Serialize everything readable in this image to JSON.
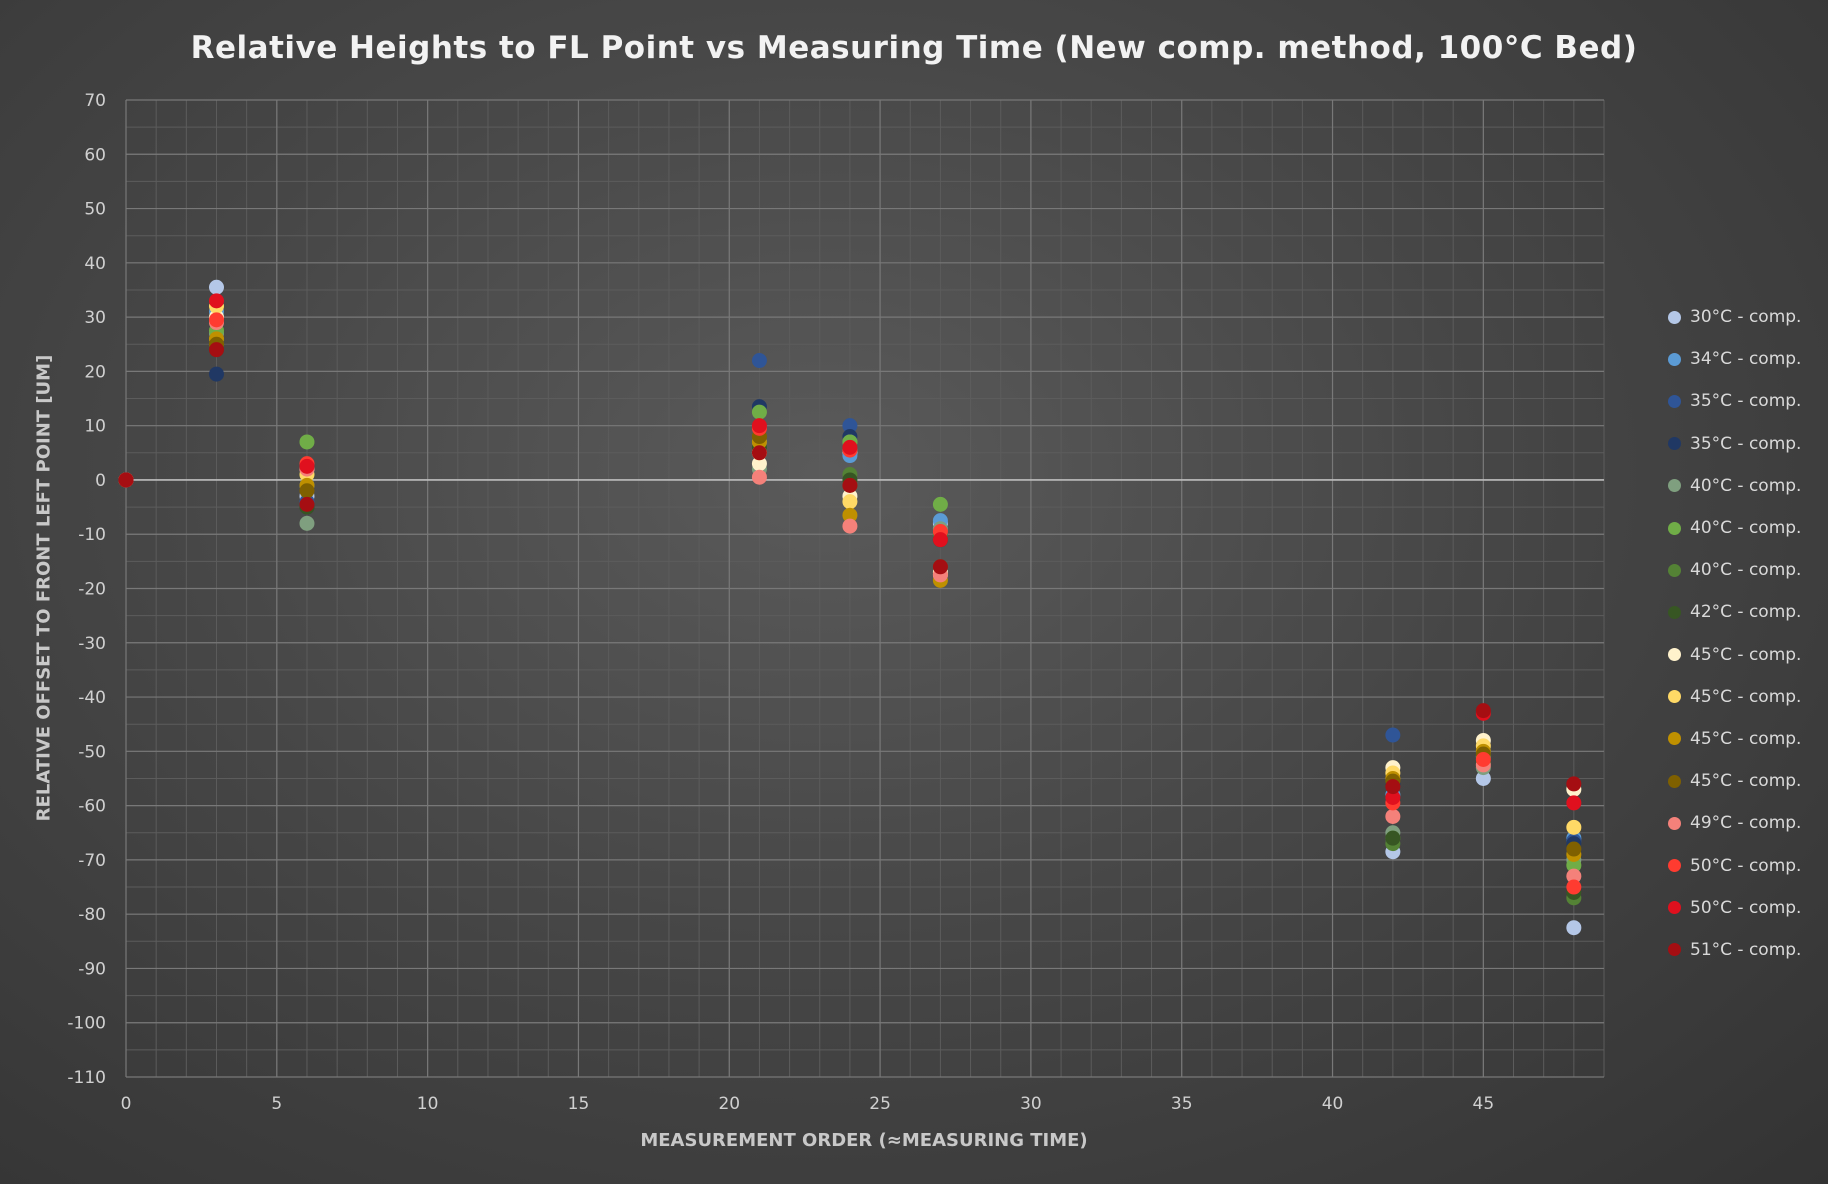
{
  "chart_data": {
    "type": "scatter",
    "title": "Relative Heights to FL Point vs Measuring Time (New comp. method, 100°C Bed)",
    "xlabel": "MEASUREMENT ORDER (≈MEASURING TIME)",
    "ylabel": "RELATIVE OFFSET TO FRONT LEFT POINT [UM]",
    "xlim": [
      0,
      49
    ],
    "ylim": [
      -110,
      70
    ],
    "x_major_step": 5,
    "x_minor_step": 1,
    "y_major_step": 10,
    "y_minor_step": 5,
    "x_ticks": [
      "0",
      "5",
      "10",
      "15",
      "20",
      "25",
      "30",
      "35",
      "40",
      "45"
    ],
    "y_ticks": [
      "70",
      "60",
      "50",
      "40",
      "30",
      "20",
      "10",
      "0",
      "-10",
      "-20",
      "-30",
      "-40",
      "-50",
      "-60",
      "-70",
      "-80",
      "-90",
      "-100",
      "-110"
    ],
    "grid": true,
    "legend_position": "right",
    "x": [
      0,
      3,
      6,
      21,
      24,
      27,
      42,
      45,
      48
    ],
    "series": [
      {
        "name": "30°C - comp.",
        "color": "#b4c7e7",
        "values": [
          0,
          35.5,
          -3,
          5,
          5,
          -8,
          -68.5,
          -55,
          -82.5
        ]
      },
      {
        "name": "34°C - comp.",
        "color": "#5b9bd5",
        "values": [
          0,
          31,
          -1,
          7,
          4.5,
          -7.5,
          -58,
          -50,
          -66
        ]
      },
      {
        "name": "35°C - comp.",
        "color": "#2f5597",
        "values": [
          0,
          26,
          -4,
          22,
          10,
          -10,
          -47,
          -51,
          -66.5
        ]
      },
      {
        "name": "35°C - comp.",
        "color": "#203864",
        "values": [
          0,
          19.5,
          -5,
          13.5,
          8,
          -11,
          -56,
          -50,
          -67
        ]
      },
      {
        "name": "40°C - comp.",
        "color": "#7f9f7f",
        "values": [
          0,
          27,
          -8,
          2,
          7,
          -9,
          -65,
          -53,
          -70
        ]
      },
      {
        "name": "40°C - comp.",
        "color": "#70ad47",
        "values": [
          0,
          27.5,
          7,
          12.5,
          7,
          -4.5,
          -66,
          -51,
          -71
        ]
      },
      {
        "name": "40°C - comp.",
        "color": "#548235",
        "values": [
          0,
          25,
          1,
          8,
          1,
          -10,
          -67,
          -52,
          -77
        ]
      },
      {
        "name": "42°C - comp.",
        "color": "#375623",
        "values": [
          0,
          24,
          -5,
          6,
          0,
          -11,
          -66,
          -52,
          -76
        ]
      },
      {
        "name": "45°C - comp.",
        "color": "#fff2cc",
        "values": [
          0,
          30,
          2,
          3,
          -3,
          -17,
          -53,
          -48,
          -57
        ]
      },
      {
        "name": "45°C - comp.",
        "color": "#ffd966",
        "values": [
          0,
          32,
          1,
          5,
          -4,
          -17.5,
          -54,
          -49,
          -64
        ]
      },
      {
        "name": "45°C - comp.",
        "color": "#bf9000",
        "values": [
          0,
          26,
          -1,
          7,
          -6.5,
          -18.5,
          -55,
          -50,
          -69
        ]
      },
      {
        "name": "45°C - comp.",
        "color": "#7f6000",
        "values": [
          0,
          25,
          -2,
          8,
          -1,
          -16,
          -55.5,
          -50.5,
          -68
        ]
      },
      {
        "name": "49°C - comp.",
        "color": "#f4817a",
        "values": [
          0,
          29,
          2,
          0.5,
          -8.5,
          -17.5,
          -62,
          -52.5,
          -73
        ]
      },
      {
        "name": "50°C - comp.",
        "color": "#ff3b30",
        "values": [
          0,
          29.5,
          3,
          9.5,
          5.5,
          -9.5,
          -59.5,
          -51.5,
          -75
        ]
      },
      {
        "name": "50°C - comp.",
        "color": "#e0101e",
        "values": [
          0,
          33,
          2.5,
          10,
          6,
          -11,
          -58.5,
          -43,
          -59.5
        ]
      },
      {
        "name": "51°C - comp.",
        "color": "#a50e12",
        "values": [
          0,
          24,
          -4.5,
          5,
          -1,
          -16,
          -56.5,
          -42.5,
          -56
        ]
      }
    ]
  }
}
